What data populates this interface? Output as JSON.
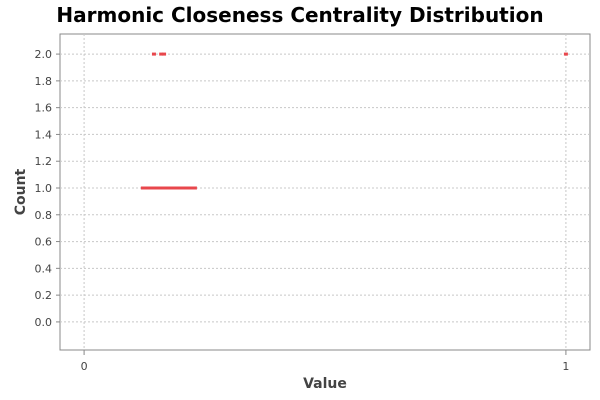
{
  "chart_data": {
    "type": "scatter",
    "title": "Harmonic Closeness Centrality Distribution",
    "xlabel": "Value",
    "ylabel": "Count",
    "xlim": [
      -0.05,
      1.05
    ],
    "ylim": [
      -0.15,
      2.15
    ],
    "x_ticks": [
      0,
      1
    ],
    "x_tick_labels": [
      "0",
      "1"
    ],
    "y_ticks": [
      0.0,
      0.2,
      0.4,
      0.6,
      0.8,
      1.0,
      1.2,
      1.4,
      1.6,
      1.8,
      2.0
    ],
    "y_tick_labels": [
      "0.0",
      "0.2",
      "0.4",
      "0.6",
      "0.8",
      "1.0",
      "1.2",
      "1.4",
      "1.6",
      "1.8",
      "2.0"
    ],
    "grid": true,
    "series": [
      {
        "color": "#e8474c",
        "points": [
          {
            "x": 0.122,
            "y": 1
          },
          {
            "x": 0.128,
            "y": 1
          },
          {
            "x": 0.134,
            "y": 1
          },
          {
            "x": 0.14,
            "y": 1
          },
          {
            "x": 0.146,
            "y": 1
          },
          {
            "x": 0.152,
            "y": 1
          },
          {
            "x": 0.158,
            "y": 1
          },
          {
            "x": 0.164,
            "y": 1
          },
          {
            "x": 0.17,
            "y": 1
          },
          {
            "x": 0.176,
            "y": 1
          },
          {
            "x": 0.182,
            "y": 1
          },
          {
            "x": 0.188,
            "y": 1
          },
          {
            "x": 0.194,
            "y": 1
          },
          {
            "x": 0.2,
            "y": 1
          },
          {
            "x": 0.206,
            "y": 1
          },
          {
            "x": 0.212,
            "y": 1
          },
          {
            "x": 0.218,
            "y": 1
          },
          {
            "x": 0.224,
            "y": 1
          },
          {
            "x": 0.23,
            "y": 1
          },
          {
            "x": 0.145,
            "y": 2
          },
          {
            "x": 0.16,
            "y": 2
          },
          {
            "x": 0.166,
            "y": 2
          },
          {
            "x": 1.0,
            "y": 2
          }
        ]
      }
    ]
  }
}
